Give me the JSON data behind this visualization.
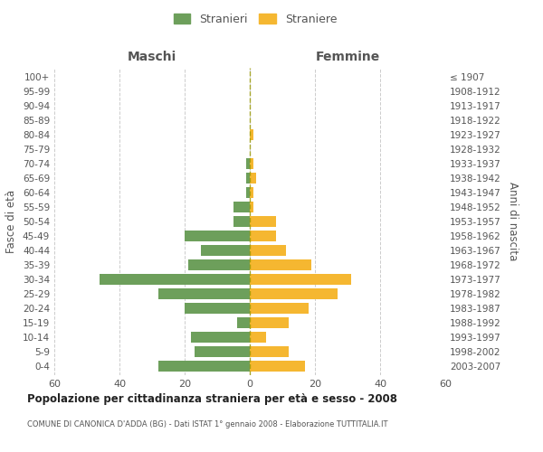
{
  "age_groups": [
    "0-4",
    "5-9",
    "10-14",
    "15-19",
    "20-24",
    "25-29",
    "30-34",
    "35-39",
    "40-44",
    "45-49",
    "50-54",
    "55-59",
    "60-64",
    "65-69",
    "70-74",
    "75-79",
    "80-84",
    "85-89",
    "90-94",
    "95-99",
    "100+"
  ],
  "birth_years": [
    "2003-2007",
    "1998-2002",
    "1993-1997",
    "1988-1992",
    "1983-1987",
    "1978-1982",
    "1973-1977",
    "1968-1972",
    "1963-1967",
    "1958-1962",
    "1953-1957",
    "1948-1952",
    "1943-1947",
    "1938-1942",
    "1933-1937",
    "1928-1932",
    "1923-1927",
    "1918-1922",
    "1913-1917",
    "1908-1912",
    "≤ 1907"
  ],
  "males": [
    28,
    17,
    18,
    4,
    20,
    28,
    46,
    19,
    15,
    20,
    5,
    5,
    1,
    1,
    1,
    0,
    0,
    0,
    0,
    0,
    0
  ],
  "females": [
    17,
    12,
    5,
    12,
    18,
    27,
    31,
    19,
    11,
    8,
    8,
    1,
    1,
    2,
    1,
    0,
    1,
    0,
    0,
    0,
    0
  ],
  "male_color": "#6d9f5b",
  "female_color": "#f5b731",
  "title": "Popolazione per cittadinanza straniera per età e sesso - 2008",
  "subtitle": "COMUNE DI CANONICA D'ADDA (BG) - Dati ISTAT 1° gennaio 2008 - Elaborazione TUTTITALIA.IT",
  "ylabel_left": "Fasce di età",
  "ylabel_right": "Anni di nascita",
  "legend_stranieri": "Stranieri",
  "legend_straniere": "Straniere",
  "header_maschi": "Maschi",
  "header_femmine": "Femmine",
  "xlim": 60,
  "background_color": "#ffffff",
  "grid_color": "#cccccc",
  "text_color": "#555555"
}
